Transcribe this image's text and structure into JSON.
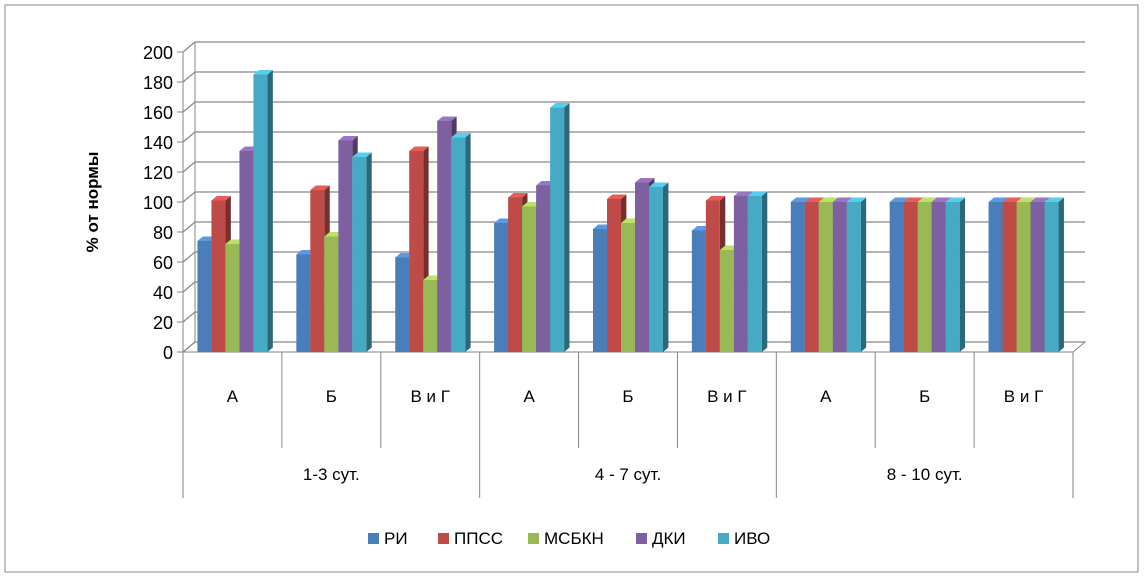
{
  "chart_data": {
    "type": "bar",
    "title": "",
    "xlabel": "",
    "ylabel": "% от нормы",
    "ylim": [
      0,
      200
    ],
    "yticks": [
      0,
      20,
      40,
      60,
      80,
      100,
      120,
      140,
      160,
      180,
      200
    ],
    "grid": true,
    "legend_position": "bottom",
    "groups": [
      {
        "label": "1-3 сут.",
        "categories": [
          "А",
          "Б",
          "В и Г"
        ]
      },
      {
        "label": "4 - 7 сут.",
        "categories": [
          "А",
          "Б",
          "В и Г"
        ]
      },
      {
        "label": "8 - 10 сут.",
        "categories": [
          "А",
          "Б",
          "В и Г"
        ]
      }
    ],
    "categories": [
      "А",
      "Б",
      "В и Г",
      "А",
      "Б",
      "В и Г",
      "А",
      "Б",
      "В и Г"
    ],
    "series": [
      {
        "name": "РИ",
        "color": "#4a7ebb",
        "values": [
          74,
          65,
          63,
          86,
          82,
          81,
          100,
          100,
          100
        ]
      },
      {
        "name": "ППСС",
        "color": "#be4b48",
        "values": [
          101,
          108,
          134,
          103,
          102,
          101,
          100,
          100,
          100
        ]
      },
      {
        "name": "МСБКН",
        "color": "#98b954",
        "values": [
          72,
          77,
          48,
          97,
          86,
          68,
          100,
          100,
          100
        ]
      },
      {
        "name": "ДКИ",
        "color": "#7d60a0",
        "values": [
          134,
          141,
          154,
          111,
          113,
          104,
          100,
          100,
          100
        ]
      },
      {
        "name": "ИВО",
        "color": "#46aac5",
        "values": [
          185,
          130,
          143,
          163,
          110,
          104,
          100,
          100,
          100
        ]
      }
    ]
  }
}
